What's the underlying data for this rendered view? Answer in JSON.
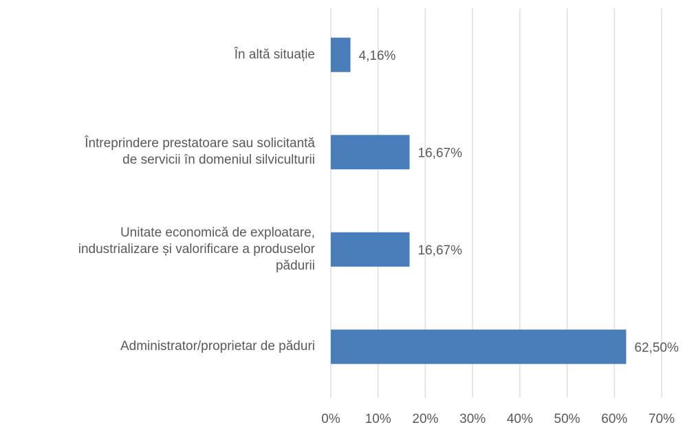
{
  "chart_data": {
    "type": "bar",
    "orientation": "horizontal",
    "categories": [
      "În altă situație",
      "Întreprindere prestatoare sau solicitantă\nde servicii în domeniul silviculturii",
      "Unitate economică de exploatare,\nindustrializare și valorificare a produselor\npădurii",
      "Administrator/proprietar de păduri"
    ],
    "values": [
      4.16,
      16.67,
      16.67,
      62.5
    ],
    "value_labels": [
      "4,16%",
      "16,67%",
      "16,67%",
      "62,50%"
    ],
    "color": "#4a7ebb",
    "xlim": [
      0,
      70
    ],
    "xticks": [
      {
        "value": 0,
        "label": "0%"
      },
      {
        "value": 10,
        "label": "10%"
      },
      {
        "value": 20,
        "label": "20%"
      },
      {
        "value": 30,
        "label": "30%"
      },
      {
        "value": 40,
        "label": "40%"
      },
      {
        "value": 50,
        "label": "50%"
      },
      {
        "value": 60,
        "label": "60%"
      },
      {
        "value": 70,
        "label": "70%"
      }
    ],
    "grid": true
  }
}
